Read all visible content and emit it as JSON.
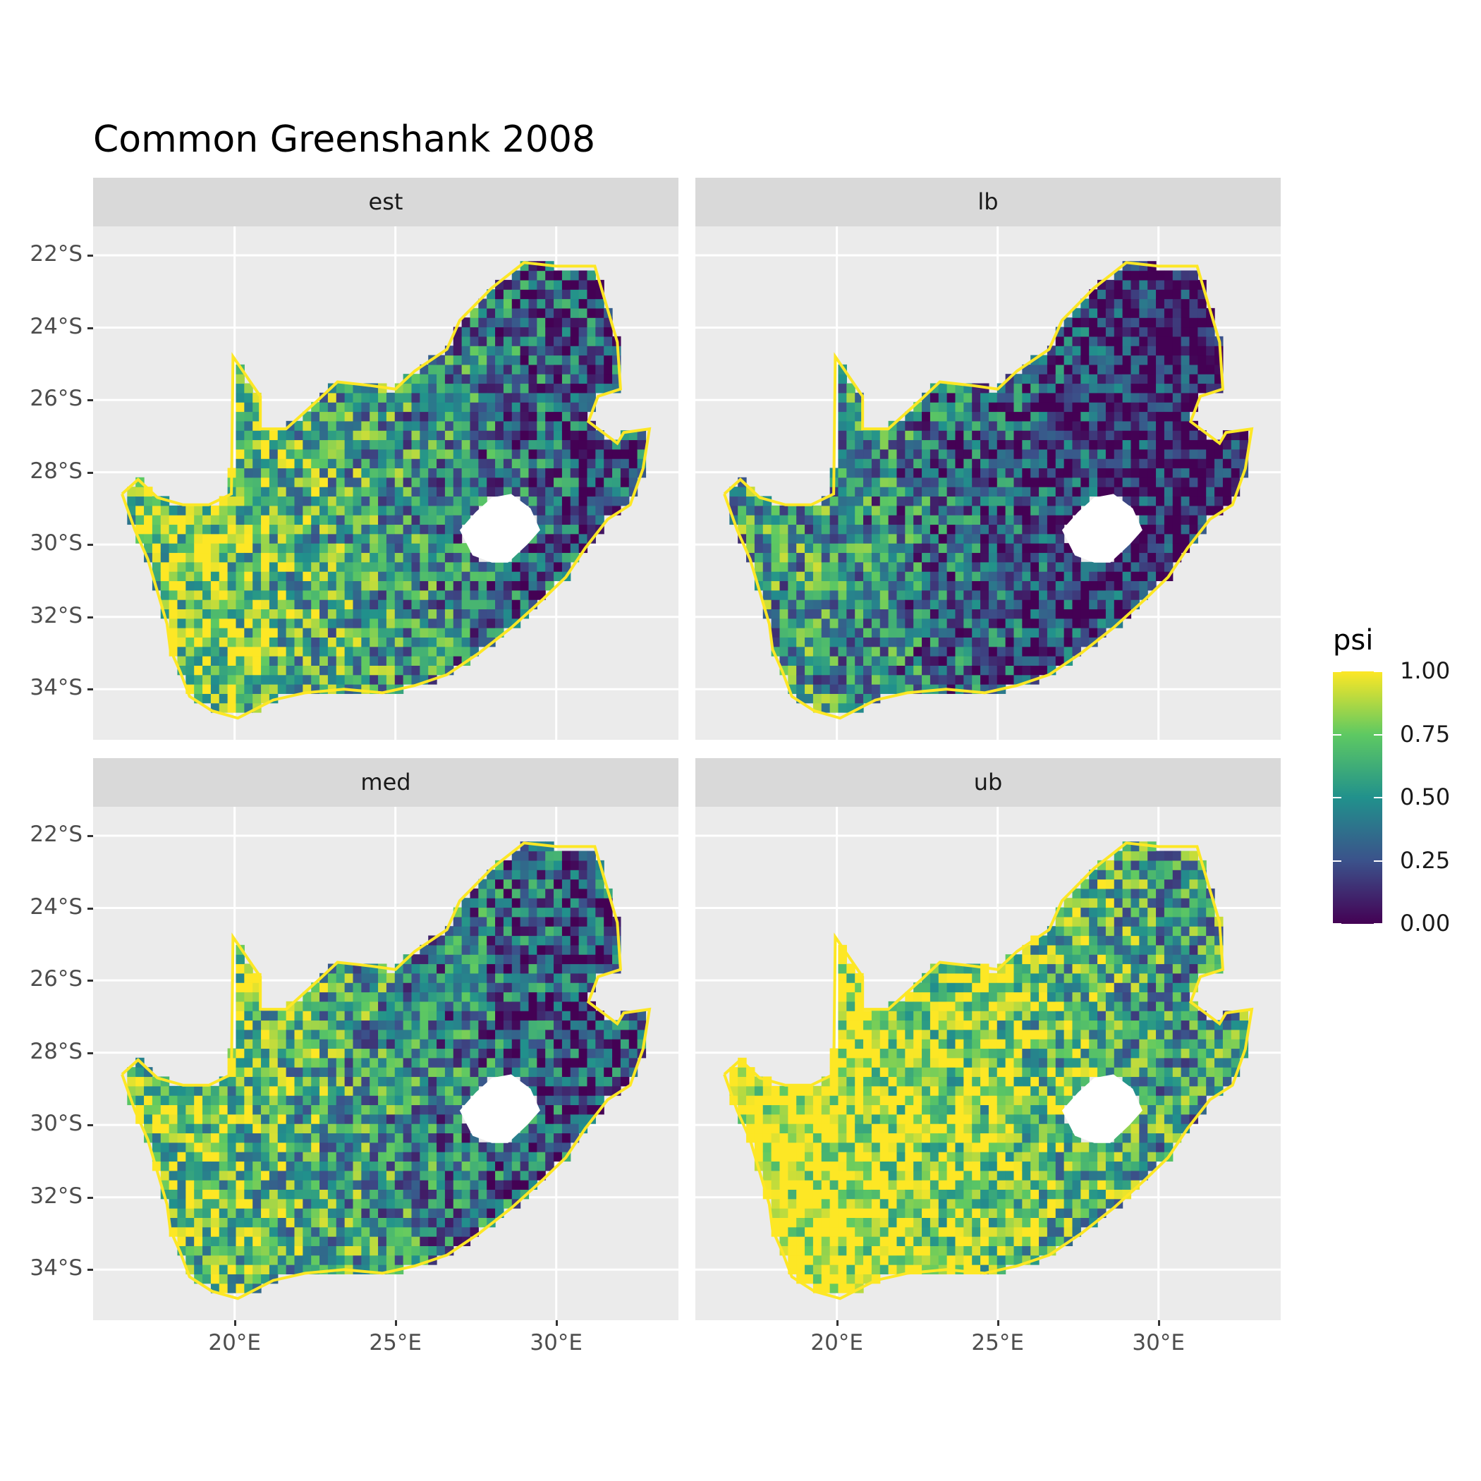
{
  "title": "Common Greenshank 2008",
  "chart_data": {
    "type": "heatmap",
    "facets": [
      {
        "id": "est",
        "label": "est",
        "mean_level": 0.52
      },
      {
        "id": "lb",
        "label": "lb",
        "mean_level": 0.28
      },
      {
        "id": "med",
        "label": "med",
        "mean_level": 0.5
      },
      {
        "id": "ub",
        "label": "ub",
        "mean_level": 0.78
      }
    ],
    "x_ticks": [
      "20°E",
      "25°E",
      "30°E"
    ],
    "x_values": [
      20,
      25,
      30
    ],
    "y_ticks": [
      "22°S",
      "24°S",
      "26°S",
      "28°S",
      "30°S",
      "32°S",
      "34°S"
    ],
    "y_values": [
      -22,
      -24,
      -26,
      -28,
      -30,
      -32,
      -34
    ],
    "xlim": [
      15.6,
      33.8
    ],
    "ylim": [
      -35.4,
      -21.2
    ],
    "legend": {
      "title": "psi",
      "labels": [
        "1.00",
        "0.75",
        "0.50",
        "0.25",
        "0.00"
      ],
      "values": [
        1.0,
        0.75,
        0.5,
        0.25,
        0.0
      ],
      "placement": "right",
      "colors": [
        "#440154",
        "#3b528b",
        "#21918c",
        "#5ec962",
        "#fde725"
      ]
    },
    "outline": [
      [
        16.5,
        -28.6
      ],
      [
        17.0,
        -28.2
      ],
      [
        17.6,
        -28.7
      ],
      [
        18.4,
        -28.9
      ],
      [
        19.2,
        -28.9
      ],
      [
        19.9,
        -28.6
      ],
      [
        19.95,
        -24.8
      ],
      [
        20.8,
        -25.9
      ],
      [
        20.8,
        -26.8
      ],
      [
        21.6,
        -26.8
      ],
      [
        22.6,
        -26.0
      ],
      [
        23.2,
        -25.5
      ],
      [
        24.2,
        -25.6
      ],
      [
        25.0,
        -25.7
      ],
      [
        25.6,
        -25.2
      ],
      [
        26.6,
        -24.6
      ],
      [
        27.0,
        -23.8
      ],
      [
        28.0,
        -22.9
      ],
      [
        29.0,
        -22.2
      ],
      [
        30.0,
        -22.3
      ],
      [
        31.2,
        -22.3
      ],
      [
        31.6,
        -23.5
      ],
      [
        31.9,
        -24.4
      ],
      [
        32.0,
        -25.7
      ],
      [
        31.3,
        -25.9
      ],
      [
        31.0,
        -26.6
      ],
      [
        31.9,
        -27.2
      ],
      [
        32.1,
        -26.9
      ],
      [
        32.9,
        -26.8
      ],
      [
        32.7,
        -27.9
      ],
      [
        32.3,
        -28.9
      ],
      [
        31.6,
        -29.3
      ],
      [
        30.9,
        -30.1
      ],
      [
        30.3,
        -30.9
      ],
      [
        29.6,
        -31.5
      ],
      [
        28.6,
        -32.3
      ],
      [
        27.6,
        -33.0
      ],
      [
        26.6,
        -33.6
      ],
      [
        25.6,
        -33.9
      ],
      [
        24.6,
        -34.1
      ],
      [
        23.4,
        -34.0
      ],
      [
        22.2,
        -34.1
      ],
      [
        21.2,
        -34.3
      ],
      [
        20.1,
        -34.8
      ],
      [
        19.3,
        -34.6
      ],
      [
        18.6,
        -34.2
      ],
      [
        18.3,
        -33.5
      ],
      [
        18.0,
        -32.9
      ],
      [
        17.9,
        -32.2
      ],
      [
        17.6,
        -31.3
      ],
      [
        17.3,
        -30.4
      ],
      [
        16.9,
        -29.6
      ],
      [
        16.5,
        -28.6
      ]
    ],
    "lesotho": [
      [
        27.0,
        -29.6
      ],
      [
        27.5,
        -29.1
      ],
      [
        28.0,
        -28.7
      ],
      [
        28.6,
        -28.6
      ],
      [
        29.2,
        -29.0
      ],
      [
        29.5,
        -29.6
      ],
      [
        29.1,
        -30.0
      ],
      [
        28.5,
        -30.5
      ],
      [
        28.0,
        -30.5
      ],
      [
        27.4,
        -30.3
      ],
      [
        27.0,
        -29.6
      ]
    ]
  }
}
